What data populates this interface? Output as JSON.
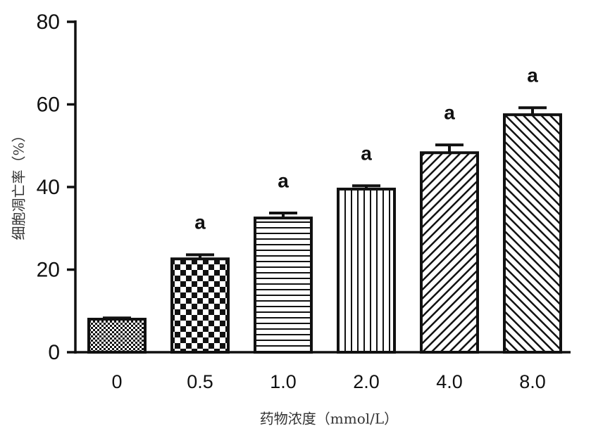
{
  "chart_data": {
    "type": "bar",
    "xlabel": "药物浓度（mmol/L）",
    "ylabel": "细胞凋亡率（%）",
    "categories": [
      "0",
      "0.5",
      "1.0",
      "2.0",
      "4.0",
      "8.0"
    ],
    "values": [
      8.0,
      22.6,
      32.5,
      39.5,
      48.3,
      57.5
    ],
    "errors": [
      0.3,
      1.0,
      1.2,
      0.8,
      1.9,
      1.7
    ],
    "annotations": [
      null,
      "a",
      "a",
      "a",
      "a",
      "a"
    ],
    "patterns": [
      "fine-checker",
      "checker",
      "horizontal",
      "vertical",
      "diagonal-up",
      "diagonal-down"
    ],
    "color": "#111111",
    "ylim": [
      0,
      80
    ],
    "yticks": [
      0,
      20,
      40,
      60,
      80
    ],
    "grid": false
  }
}
